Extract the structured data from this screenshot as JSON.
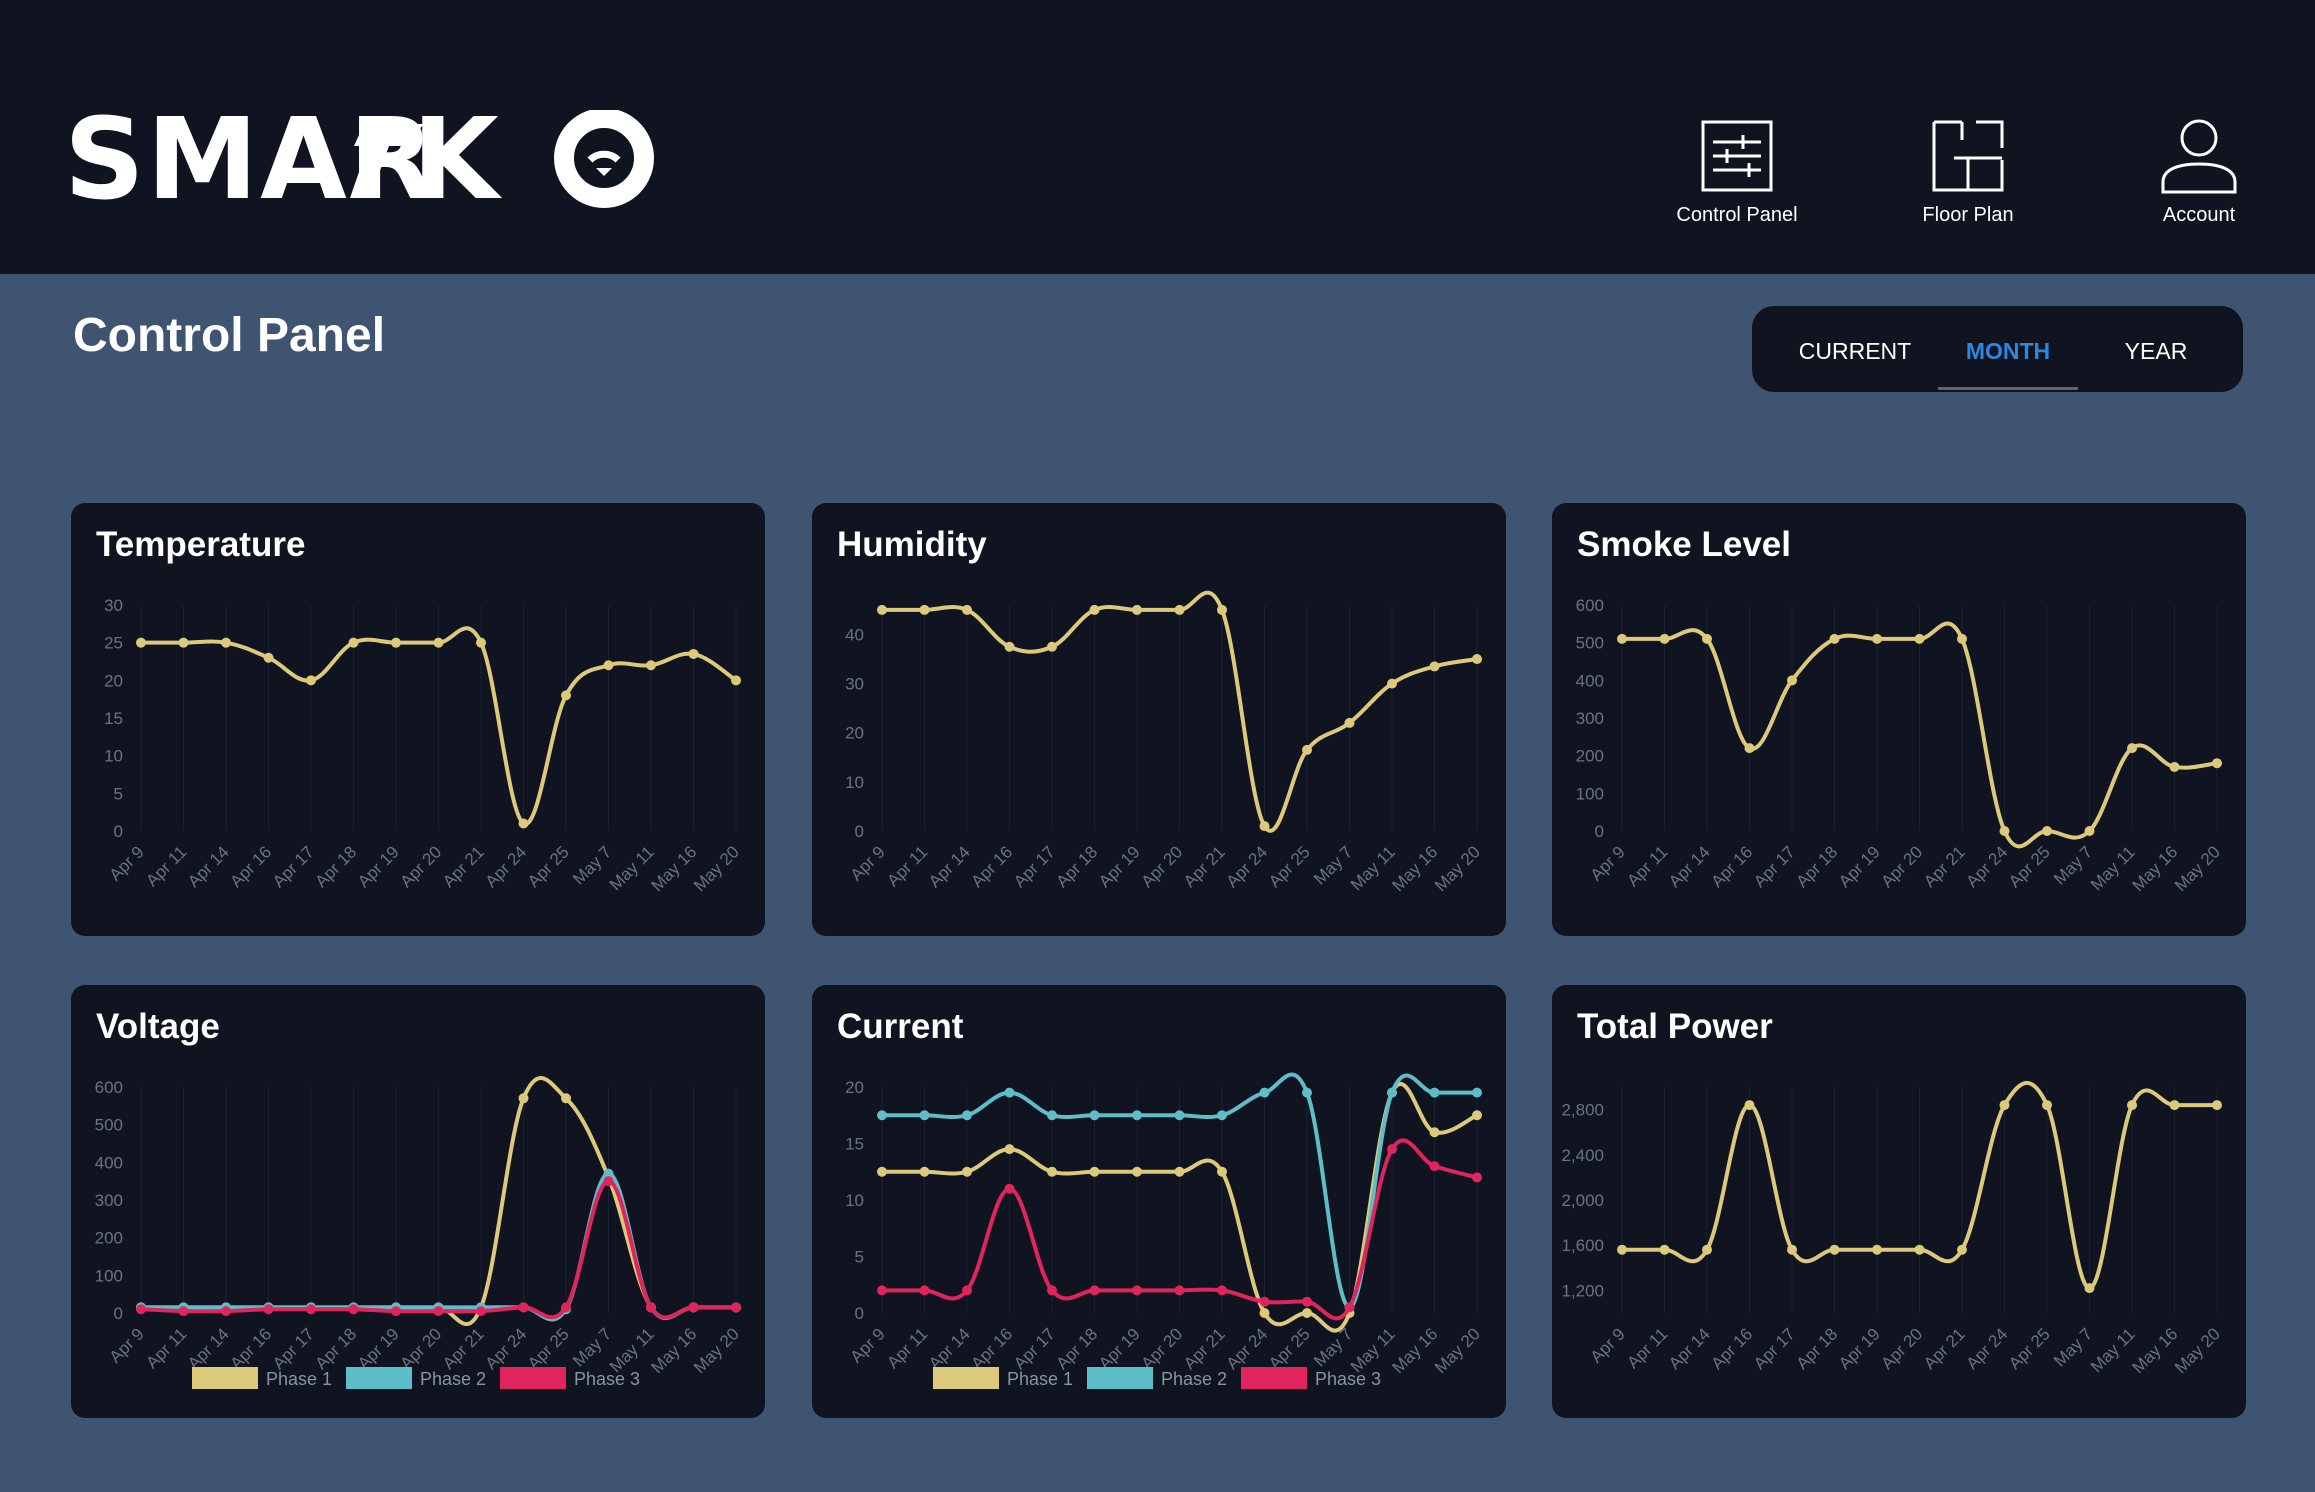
{
  "app": {
    "logo_text": "SMARTKO",
    "brand_bg": "#0f1420",
    "page_bg": "#3f5470",
    "accent": "#2f86e0"
  },
  "nav": [
    {
      "label": "Control Panel",
      "icon": "sliders-icon"
    },
    {
      "label": "Floor Plan",
      "icon": "floor-plan-icon"
    },
    {
      "label": "Account",
      "icon": "user-icon"
    }
  ],
  "page": {
    "title": "Control Panel"
  },
  "range_tabs": {
    "items": [
      "CURRENT",
      "MONTH",
      "YEAR"
    ],
    "selected": "MONTH"
  },
  "chart_data": [
    {
      "type": "line",
      "title": "Temperature",
      "categories": [
        "Apr 9",
        "Apr 11",
        "Apr 14",
        "Apr 16",
        "Apr 17",
        "Apr 18",
        "Apr 19",
        "Apr 20",
        "Apr 21",
        "Apr 24",
        "Apr 25",
        "May 7",
        "May 11",
        "May 16",
        "May 20"
      ],
      "series": [
        {
          "color": "#dcc97a",
          "values": [
            25,
            25,
            25,
            23,
            20,
            25,
            25,
            25,
            25,
            1,
            18,
            22,
            22,
            23.5,
            20
          ]
        }
      ],
      "yticks": [
        "0",
        "5",
        "10",
        "15",
        "20",
        "25",
        "30"
      ],
      "ylim": [
        0,
        30
      ]
    },
    {
      "type": "line",
      "title": "Humidity",
      "categories": [
        "Apr 9",
        "Apr 11",
        "Apr 14",
        "Apr 16",
        "Apr 17",
        "Apr 18",
        "Apr 19",
        "Apr 20",
        "Apr 21",
        "Apr 24",
        "Apr 25",
        "May 7",
        "May 11",
        "May 16",
        "May 20"
      ],
      "series": [
        {
          "color": "#dcc97a",
          "values": [
            45,
            45,
            45,
            37.5,
            37.5,
            45,
            45,
            45,
            45,
            1,
            16.5,
            22,
            30,
            33.5,
            35
          ]
        }
      ],
      "yticks": [
        "0",
        "10",
        "20",
        "30",
        "40"
      ],
      "ylim": [
        0,
        46
      ]
    },
    {
      "type": "line",
      "title": "Smoke Level",
      "categories": [
        "Apr 9",
        "Apr 11",
        "Apr 14",
        "Apr 16",
        "Apr 17",
        "Apr 18",
        "Apr 19",
        "Apr 20",
        "Apr 21",
        "Apr 24",
        "Apr 25",
        "May 7",
        "May 11",
        "May 16",
        "May 20"
      ],
      "series": [
        {
          "color": "#dcc97a",
          "values": [
            510,
            510,
            510,
            220,
            400,
            510,
            510,
            510,
            510,
            0,
            0,
            0,
            220,
            170,
            180
          ]
        }
      ],
      "yticks": [
        "0",
        "100",
        "200",
        "300",
        "400",
        "500",
        "600"
      ],
      "ylim": [
        0,
        600
      ]
    },
    {
      "type": "line",
      "title": "Voltage",
      "categories": [
        "Apr 9",
        "Apr 11",
        "Apr 14",
        "Apr 16",
        "Apr 17",
        "Apr 18",
        "Apr 19",
        "Apr 20",
        "Apr 21",
        "Apr 24",
        "Apr 25",
        "May 7",
        "May 11",
        "May 16",
        "May 20"
      ],
      "series": [
        {
          "name": "Phase 1",
          "color": "#dcc97a",
          "values": [
            15,
            15,
            15,
            15,
            15,
            15,
            15,
            15,
            15,
            570,
            570,
            360,
            15,
            15,
            15
          ]
        },
        {
          "name": "Phase 2",
          "color": "#5ebec8",
          "values": [
            15,
            15,
            15,
            15,
            15,
            15,
            15,
            15,
            15,
            15,
            10,
            370,
            15,
            15,
            15
          ]
        },
        {
          "name": "Phase 3",
          "color": "#e0245e",
          "values": [
            10,
            5,
            5,
            10,
            10,
            10,
            5,
            5,
            5,
            15,
            15,
            350,
            15,
            15,
            15
          ]
        }
      ],
      "yticks": [
        "0",
        "100",
        "200",
        "300",
        "400",
        "500",
        "600"
      ],
      "ylim": [
        0,
        600
      ]
    },
    {
      "type": "line",
      "title": "Current",
      "categories": [
        "Apr 9",
        "Apr 11",
        "Apr 14",
        "Apr 16",
        "Apr 17",
        "Apr 18",
        "Apr 19",
        "Apr 20",
        "Apr 21",
        "Apr 24",
        "Apr 25",
        "May 7",
        "May 11",
        "May 16",
        "May 20"
      ],
      "series": [
        {
          "name": "Phase 1",
          "color": "#dcc97a",
          "values": [
            12.5,
            12.5,
            12.5,
            14.5,
            12.5,
            12.5,
            12.5,
            12.5,
            12.5,
            0,
            0,
            0,
            19.5,
            16,
            17.5
          ]
        },
        {
          "name": "Phase 2",
          "color": "#5ebec8",
          "values": [
            17.5,
            17.5,
            17.5,
            19.5,
            17.5,
            17.5,
            17.5,
            17.5,
            17.5,
            19.5,
            19.5,
            0.5,
            19.5,
            19.5,
            19.5
          ]
        },
        {
          "name": "Phase 3",
          "color": "#e0245e",
          "values": [
            2,
            2,
            2,
            11,
            2,
            2,
            2,
            2,
            2,
            1,
            1,
            0.5,
            14.5,
            13,
            12
          ]
        }
      ],
      "yticks": [
        "0",
        "5",
        "10",
        "15",
        "20"
      ],
      "ylim": [
        0,
        20
      ]
    },
    {
      "type": "line",
      "title": "Total Power",
      "categories": [
        "Apr 9",
        "Apr 11",
        "Apr 14",
        "Apr 16",
        "Apr 17",
        "Apr 18",
        "Apr 19",
        "Apr 20",
        "Apr 21",
        "Apr 24",
        "Apr 25",
        "May 7",
        "May 11",
        "May 16",
        "May 20"
      ],
      "series": [
        {
          "color": "#dcc97a",
          "values": [
            1560,
            1560,
            1560,
            2840,
            1560,
            1560,
            1560,
            1560,
            1560,
            2840,
            2840,
            1220,
            2840,
            2840,
            2840
          ]
        }
      ],
      "yticks": [
        "1,200",
        "1,600",
        "2,000",
        "2,400",
        "2,800"
      ],
      "ylim": [
        1000,
        3000
      ],
      "ytick_values": [
        1200,
        1600,
        2000,
        2400,
        2800
      ]
    }
  ]
}
